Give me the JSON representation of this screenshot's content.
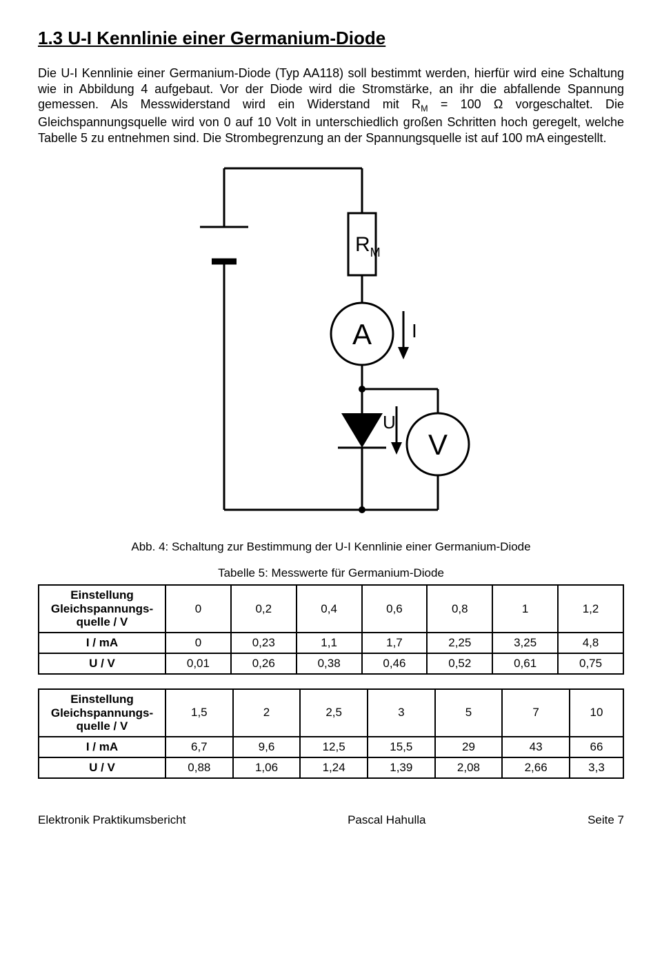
{
  "heading": "1.3  U-I Kennlinie einer Germanium-Diode",
  "paragraph_html": "Die U-I Kennlinie einer Germanium-Diode (Typ AA118) soll bestimmt werden, hierfür wird eine Schaltung wie in Abbildung 4 aufgebaut. Vor der Diode wird die Stromstärke, an ihr die abfallende Spannung gemessen. Als Messwiderstand wird ein Widerstand mit R<sub>M</sub> = 100 Ω vorgeschaltet. Die Gleichspannungsquelle wird von 0 auf 10 Volt in unterschiedlich großen Schritten hoch geregelt, welche Tabelle 5 zu entnehmen sind. Die Strombegrenzung an der Spannungsquelle ist auf 100 mA eingestellt.",
  "diagram": {
    "resistor_label": "R",
    "resistor_sub": "M",
    "ammeter_label": "A",
    "current_label": "I",
    "voltage_label": "U",
    "voltmeter_label": "V",
    "stroke_color": "#000000",
    "stroke_width_wire": 3,
    "stroke_width_component": 3
  },
  "figure_caption": "Abb. 4: Schaltung zur Bestimmung der U-I Kennlinie einer Germanium-Diode",
  "table_caption": "Tabelle 5: Messwerte für Germanium-Diode",
  "row_headers": {
    "setting": "Einstellung Gleichspannungs-quelle / V",
    "current": "I / mA",
    "voltage": "U / V"
  },
  "table1": {
    "setting": [
      "0",
      "0,2",
      "0,4",
      "0,6",
      "0,8",
      "1",
      "1,2"
    ],
    "current": [
      "0",
      "0,23",
      "1,1",
      "1,7",
      "2,25",
      "3,25",
      "4,8"
    ],
    "voltage": [
      "0,01",
      "0,26",
      "0,38",
      "0,46",
      "0,52",
      "0,61",
      "0,75"
    ]
  },
  "table2": {
    "setting": [
      "1,5",
      "2",
      "2,5",
      "3",
      "5",
      "7",
      "10"
    ],
    "current": [
      "6,7",
      "9,6",
      "12,5",
      "15,5",
      "29",
      "43",
      "66"
    ],
    "voltage": [
      "0,88",
      "1,06",
      "1,24",
      "1,39",
      "2,08",
      "2,66",
      "3,3"
    ]
  },
  "footer": {
    "left": "Elektronik Praktikumsbericht",
    "center": "Pascal Hahulla",
    "right": "Seite 7"
  }
}
